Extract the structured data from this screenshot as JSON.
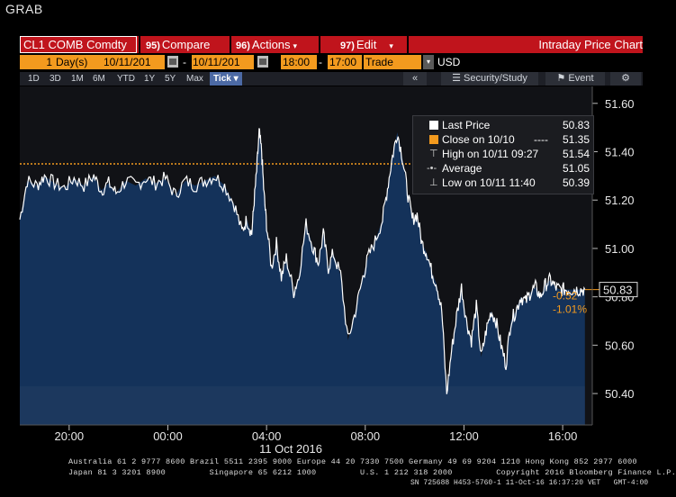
{
  "window": {
    "title": "GRAB"
  },
  "toolbar": {
    "ticker": "CL1 COMB Comdty",
    "compare_num": "95)",
    "compare_label": "Compare",
    "actions_num": "96)",
    "actions_label": "Actions",
    "edit_num": "97)",
    "edit_label": "Edit",
    "chart_title": "Intraday Price Chart"
  },
  "range_bar": {
    "period_value": "1",
    "period_unit": "Day(s)",
    "start_date": "10/11/201",
    "dash": "-",
    "end_date": "10/11/201",
    "start_time": "18:00",
    "end_time": "17:00",
    "field": "Trade",
    "currency": "USD"
  },
  "period_buttons": [
    "1D",
    "3D",
    "1M",
    "6M",
    "YTD",
    "1Y",
    "5Y",
    "Max"
  ],
  "tick_button": "Tick",
  "tools": {
    "collapse": "«",
    "security_study": "Security/Study",
    "event": "Event"
  },
  "chart_data": {
    "type": "line",
    "title": "",
    "xlabel": "",
    "ylabel": "",
    "date_label": "11 Oct 2016",
    "ylim": [
      50.27,
      51.67
    ],
    "y_ticks": [
      "51.60",
      "51.40",
      "51.20",
      "51.00",
      "50.80",
      "50.60",
      "50.40"
    ],
    "x_tick_labels": [
      "20:00",
      "00:00",
      "04:00",
      "08:00",
      "12:00",
      "16:00"
    ],
    "x_tick_hours": [
      20,
      24,
      28,
      32,
      36,
      40
    ],
    "x_range_hours": [
      18.0,
      41.2
    ],
    "series": [
      {
        "name": "Last Price",
        "color": "#ffffff",
        "x_hours": [
          18.0,
          18.3,
          18.7,
          19.0,
          19.4,
          19.8,
          20.2,
          20.6,
          21.0,
          21.3,
          21.6,
          21.9,
          22.3,
          22.7,
          23.1,
          23.5,
          23.9,
          24.3,
          24.7,
          25.1,
          25.5,
          25.9,
          26.3,
          26.7,
          27.0,
          27.2,
          27.4,
          27.5,
          27.6,
          27.7,
          27.8,
          27.9,
          28.0,
          28.2,
          28.4,
          28.6,
          28.8,
          29.1,
          29.3,
          29.6,
          29.9,
          30.1,
          30.3,
          30.5,
          30.7,
          31.0,
          31.3,
          31.6,
          31.9,
          32.1,
          32.4,
          32.7,
          32.9,
          33.1,
          33.3,
          33.5,
          33.7,
          33.9,
          34.1,
          34.3,
          34.5,
          34.7,
          34.9,
          35.1,
          35.3,
          35.5,
          35.7,
          35.9,
          36.1,
          36.3,
          36.5,
          36.7,
          36.9,
          37.1,
          37.3,
          37.5,
          37.7,
          37.9,
          38.1,
          38.3,
          38.5,
          38.7,
          38.9,
          39.1,
          39.3,
          39.5,
          39.7,
          39.9,
          40.1,
          40.3,
          40.5,
          40.7,
          40.9
        ],
        "values": [
          51.12,
          51.28,
          51.26,
          51.3,
          51.27,
          51.25,
          51.29,
          51.26,
          51.3,
          51.24,
          51.27,
          51.23,
          51.28,
          51.26,
          51.29,
          51.27,
          51.29,
          51.22,
          51.28,
          51.26,
          51.28,
          51.3,
          51.26,
          51.18,
          51.07,
          51.12,
          51.06,
          51.2,
          51.32,
          51.48,
          51.4,
          51.22,
          51.1,
          50.92,
          51.02,
          50.88,
          50.96,
          50.82,
          50.88,
          51.1,
          51.0,
          50.94,
          51.06,
          50.92,
          50.98,
          50.89,
          50.62,
          50.74,
          50.88,
          50.96,
          51.03,
          51.12,
          51.25,
          51.38,
          51.48,
          51.38,
          51.24,
          51.12,
          51.14,
          51.02,
          50.98,
          50.9,
          50.85,
          50.74,
          50.4,
          50.58,
          50.72,
          50.84,
          50.7,
          50.62,
          50.76,
          50.55,
          50.66,
          50.74,
          50.7,
          50.6,
          50.52,
          50.7,
          50.74,
          50.8,
          50.78,
          50.82,
          50.84,
          50.8,
          50.85,
          50.87,
          50.84,
          50.83,
          50.83,
          50.83,
          50.83,
          50.83,
          50.83
        ]
      },
      {
        "name": "Close on 10/10",
        "color": "#f39a1e",
        "value": 51.35
      }
    ],
    "annotations": {
      "last_price": "50.83",
      "change": "-0.52",
      "change_pct": "-1.01%"
    },
    "grid": false,
    "fill": true
  },
  "legend": {
    "last_price_label": "Last Price",
    "last_price_value": "50.83",
    "close_label": "Close on 10/10",
    "close_dash": "----",
    "close_value": "51.35",
    "high_label": "High on 10/11 09:27",
    "high_value": "51.54",
    "average_label": "Average",
    "average_value": "51.05",
    "low_label": "Low on 10/11 11:40",
    "low_value": "50.39"
  },
  "footer": {
    "line1": "Australia 61 2 9777 8600 Brazil 5511 2395 9000 Europe 44 20 7330 7500 Germany 49 69 9204 1210 Hong Kong 852 2977 6000",
    "line2": "Japan 81 3 3201 8900         Singapore 65 6212 1000         U.S. 1 212 318 2000         Copyright 2016 Bloomberg Finance L.P.",
    "line3": "SN 725688 H453-5760-1 11-Oct-16 16:37:20 VET   GMT-4:00"
  },
  "colors": {
    "accent_red": "#c0141c",
    "field_orange": "#f39a1e",
    "area_fill": "#14325a",
    "area_fill_light": "#223e62",
    "background": "#000000"
  }
}
